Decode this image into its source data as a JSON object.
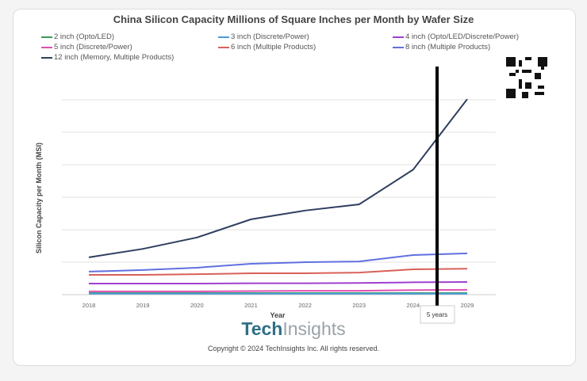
{
  "chart_data": {
    "type": "line",
    "title": "China Silicon Capacity Millions of Square Inches per Month by Wafer Size",
    "xlabel": "Year",
    "ylabel": "Silicon Capacity per Month (MSI)",
    "categories": [
      "2018",
      "2019",
      "2020",
      "2021",
      "2022",
      "2023",
      "2024",
      "2029"
    ],
    "ylim": [
      0,
      6
    ],
    "grid": true,
    "legend": "top",
    "series": [
      {
        "name": "2 inch (Opto/LED)",
        "color": "#3a9a5a",
        "values": [
          0.05,
          0.05,
          0.05,
          0.05,
          0.05,
          0.05,
          0.05,
          0.05
        ]
      },
      {
        "name": "3 inch (Discrete/Power)",
        "color": "#4a9ad8",
        "values": [
          0.03,
          0.03,
          0.03,
          0.03,
          0.03,
          0.03,
          0.03,
          0.03
        ]
      },
      {
        "name": "4 inch (Opto/LED/Discrete/Power)",
        "color": "#a040d0",
        "values": [
          0.34,
          0.34,
          0.34,
          0.35,
          0.35,
          0.36,
          0.38,
          0.39
        ]
      },
      {
        "name": "5 inch (Discrete/Power)",
        "color": "#e050b0",
        "values": [
          0.1,
          0.1,
          0.1,
          0.11,
          0.12,
          0.12,
          0.14,
          0.15
        ]
      },
      {
        "name": "6 inch (Multiple Products)",
        "color": "#d9605a",
        "values": [
          0.61,
          0.61,
          0.63,
          0.66,
          0.66,
          0.68,
          0.78,
          0.8
        ]
      },
      {
        "name": "8 inch (Multiple Products)",
        "color": "#6070e0",
        "values": [
          0.71,
          0.76,
          0.83,
          0.95,
          1.0,
          1.02,
          1.22,
          1.27
        ]
      },
      {
        "name": "12 inch (Memory, Multiple Products)",
        "color": "#2e3f5e",
        "values": [
          1.15,
          1.41,
          1.76,
          2.32,
          2.59,
          2.78,
          3.85,
          6.02
        ]
      }
    ],
    "annotation": "5 years"
  },
  "logo": {
    "tech": "Tech",
    "insights": "Insights"
  },
  "copyright": "Copyright © 2024 TechInsights Inc.  All rights reserved."
}
